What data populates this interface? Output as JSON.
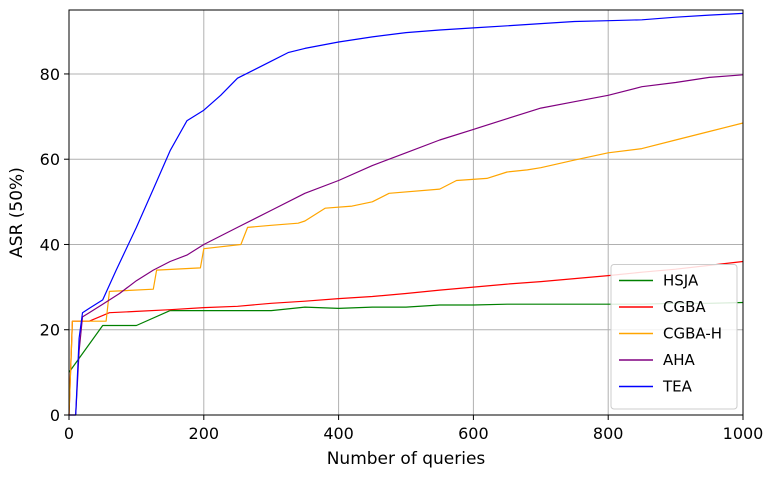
{
  "chart_data": {
    "type": "line",
    "xlabel": "Number of queries",
    "ylabel": "ASR (50%)",
    "xlim": [
      0,
      1000
    ],
    "ylim": [
      0,
      95
    ],
    "xticks": [
      "0",
      "200",
      "400",
      "600",
      "800",
      "1000"
    ],
    "yticks": [
      "0",
      "20",
      "40",
      "60",
      "80"
    ],
    "grid": true,
    "legend_position": "bottom-right",
    "series": [
      {
        "name": "HSJA",
        "color": "#008000",
        "x": [
          0,
          50,
          100,
          150,
          200,
          250,
          300,
          350,
          400,
          450,
          500,
          550,
          600,
          650,
          700,
          750,
          800,
          850,
          900,
          950,
          1000
        ],
        "y": [
          10,
          21,
          21,
          24.5,
          24.5,
          24.5,
          24.5,
          25.3,
          25,
          25.3,
          25.3,
          25.8,
          25.8,
          26,
          26,
          26,
          26,
          26,
          26.2,
          26.2,
          26.4
        ]
      },
      {
        "name": "CGBA",
        "color": "#ff0000",
        "x": [
          0,
          5,
          30,
          60,
          100,
          150,
          200,
          250,
          300,
          350,
          400,
          450,
          500,
          550,
          600,
          650,
          700,
          750,
          800,
          850,
          900,
          950,
          1000
        ],
        "y": [
          0,
          22,
          22,
          24,
          24.3,
          24.7,
          25.2,
          25.5,
          26.2,
          26.7,
          27.3,
          27.8,
          28.5,
          29.3,
          30,
          30.7,
          31.3,
          32,
          32.7,
          33.5,
          34.2,
          35.1,
          36
        ]
      },
      {
        "name": "CGBA-H",
        "color": "#ffa500",
        "x": [
          0,
          5,
          55,
          60,
          125,
          130,
          195,
          200,
          255,
          265,
          300,
          340,
          350,
          380,
          420,
          450,
          475,
          550,
          575,
          620,
          650,
          680,
          700,
          750,
          800,
          850,
          900,
          950,
          1000
        ],
        "y": [
          0,
          22,
          22,
          29,
          29.5,
          34,
          34.5,
          39,
          40,
          44,
          44.5,
          45,
          45.5,
          48.5,
          49,
          50,
          52,
          53,
          55,
          55.5,
          57,
          57.5,
          58,
          59.8,
          61.5,
          62.5,
          64.5,
          66.5,
          68.5
        ]
      },
      {
        "name": "AHA",
        "color": "#800080",
        "x": [
          0,
          10,
          15,
          20,
          30,
          50,
          75,
          100,
          125,
          150,
          175,
          200,
          250,
          300,
          350,
          400,
          450,
          500,
          550,
          600,
          650,
          700,
          750,
          800,
          850,
          900,
          950,
          1000
        ],
        "y": [
          0,
          0,
          15,
          23,
          24,
          26,
          28.5,
          31.5,
          34,
          36,
          37.5,
          40,
          44,
          48,
          52,
          55,
          58.5,
          61.5,
          64.5,
          67,
          69.5,
          72,
          73.5,
          75,
          77,
          78,
          79.2,
          79.8
        ]
      },
      {
        "name": "TEA",
        "color": "#0000ff",
        "x": [
          0,
          10,
          15,
          20,
          30,
          50,
          70,
          100,
          125,
          150,
          175,
          200,
          225,
          250,
          275,
          300,
          325,
          350,
          400,
          450,
          500,
          550,
          600,
          650,
          700,
          750,
          800,
          850,
          900,
          950,
          1000
        ],
        "y": [
          0,
          0,
          18,
          24,
          25,
          27,
          34,
          44,
          53,
          62,
          69,
          71.5,
          75,
          79,
          81,
          83,
          85,
          86,
          87.5,
          88.7,
          89.7,
          90.3,
          90.8,
          91.3,
          91.8,
          92.3,
          92.5,
          92.7,
          93.3,
          93.8,
          94.2
        ]
      }
    ]
  }
}
